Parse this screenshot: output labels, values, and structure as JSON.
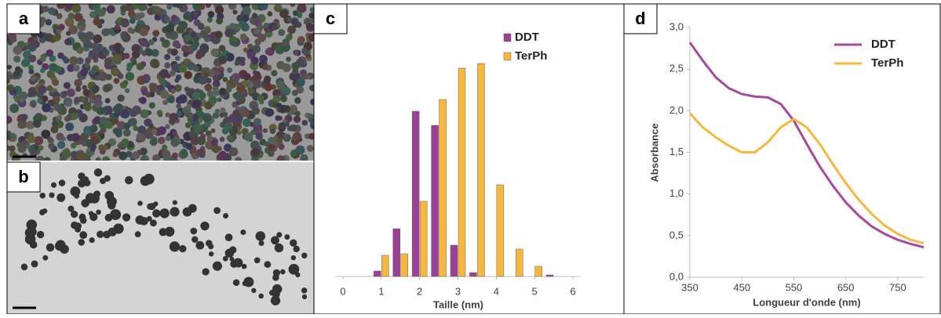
{
  "panel_labels": [
    "a",
    "b"
  ],
  "chart_data": [
    {
      "type": "bar",
      "panel_label": "c",
      "x_label": "Taille (nm)",
      "x": [
        1,
        1.5,
        2,
        2.5,
        3,
        3.5,
        4,
        4.5,
        5,
        5.5
      ],
      "xlim": [
        -0.2,
        6.2
      ],
      "xticks": [
        0,
        1,
        2,
        3,
        4,
        5,
        6
      ],
      "ylim": [
        0,
        28
      ],
      "series": [
        {
          "name": "DDT",
          "color": "#9c3f96",
          "values": [
            0.7,
            6.1,
            21.1,
            19.3,
            4.0,
            0.5,
            0,
            0,
            0,
            0.2
          ]
        },
        {
          "name": "TerPh",
          "color": "#f6b73c",
          "values": [
            2.7,
            2.9,
            9.6,
            22.6,
            26.6,
            27.2,
            11.7,
            3.5,
            1.3,
            0
          ]
        }
      ]
    },
    {
      "type": "line",
      "panel_label": "d",
      "x_label": "Longueur d'onde (nm)",
      "y_label": "Absorbance",
      "x": [
        350,
        375,
        400,
        425,
        450,
        475,
        500,
        525,
        550,
        575,
        600,
        625,
        650,
        675,
        700,
        725,
        750,
        775,
        800
      ],
      "xlim": [
        350,
        800
      ],
      "xticks": [
        350,
        450,
        550,
        650,
        750
      ],
      "ylim": [
        0,
        3
      ],
      "yticks": [
        {
          "value": 0,
          "label": "0,0"
        },
        {
          "value": 0.5,
          "label": "0,5"
        },
        {
          "value": 1,
          "label": "1,0"
        },
        {
          "value": 1.5,
          "label": "1,5"
        },
        {
          "value": 2,
          "label": "2,0"
        },
        {
          "value": 2.5,
          "label": "2,5"
        },
        {
          "value": 3,
          "label": "3,0"
        }
      ],
      "series": [
        {
          "name": "DDT",
          "color": "#a8479e",
          "values": [
            2.82,
            2.6,
            2.4,
            2.27,
            2.2,
            2.17,
            2.16,
            2.08,
            1.88,
            1.6,
            1.33,
            1.1,
            0.9,
            0.74,
            0.61,
            0.52,
            0.45,
            0.4,
            0.36
          ]
        },
        {
          "name": "TerPh",
          "color": "#f6b73c",
          "values": [
            1.97,
            1.8,
            1.68,
            1.58,
            1.5,
            1.5,
            1.62,
            1.8,
            1.9,
            1.8,
            1.6,
            1.36,
            1.13,
            0.93,
            0.76,
            0.62,
            0.52,
            0.45,
            0.41
          ]
        }
      ]
    }
  ]
}
